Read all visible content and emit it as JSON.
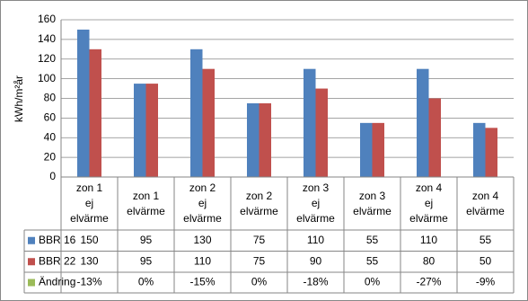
{
  "chart_data": {
    "type": "bar",
    "y_label": "kWh/m²år",
    "categories": [
      "zon 1\nej\nelvärme",
      "zon 1\nelvärme",
      "zon 2\nej\nelvärme",
      "zon 2\nelvärme",
      "zon 3\nej\nelvärme",
      "zon 3\nelvärme",
      "zon 4\nej\nelvärme",
      "zon 4\nelvärme"
    ],
    "series": [
      {
        "name": "BBR 16",
        "color": "#4f81bd",
        "values": [
          150,
          95,
          130,
          75,
          110,
          55,
          110,
          55
        ]
      },
      {
        "name": "BBR 22",
        "color": "#c0504d",
        "values": [
          130,
          95,
          110,
          75,
          90,
          55,
          80,
          50
        ]
      },
      {
        "name": "Ändring",
        "color": "#9bbb59",
        "values": [
          -13,
          0,
          -15,
          0,
          -18,
          0,
          -27,
          -9
        ],
        "value_labels": [
          "-13%",
          "0%",
          "-15%",
          "0%",
          "-18%",
          "0%",
          "-27%",
          "-9%"
        ],
        "table_only": true
      }
    ],
    "ylim": [
      0,
      160
    ],
    "yticks": [
      0,
      20,
      40,
      60,
      80,
      100,
      120,
      140,
      160
    ],
    "grid": true
  }
}
